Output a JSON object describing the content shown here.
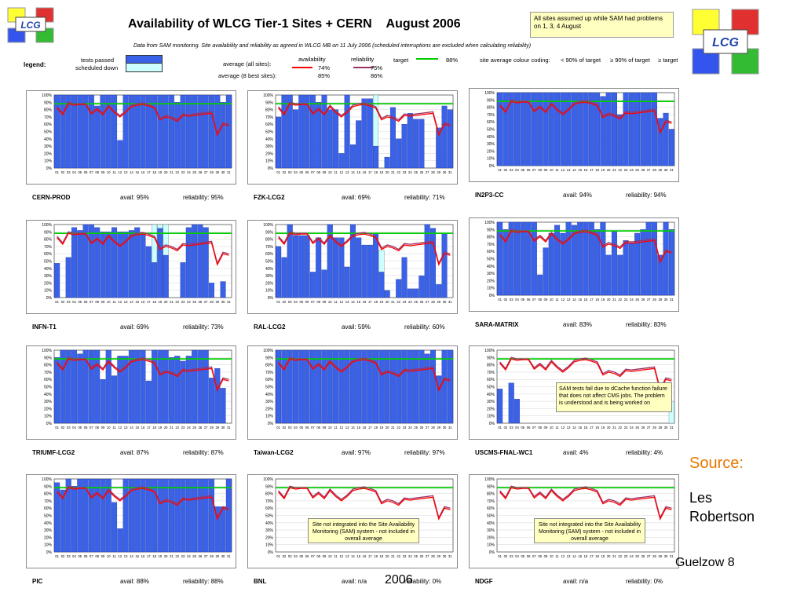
{
  "title": "Availability of WLCG Tier-1 Sites + CERN",
  "period": "August 2006",
  "note": "All sites assumed up while SAM had problems on 1, 3, 4 August",
  "subtitle": "Data from SAM monitoring. Site availability and reliability as agreed in WLCG MB on 11 July 2006 (scheduled interruptions are excluded when calculating reliability)",
  "logo_text": "LCG",
  "legend": {
    "label": "legend:",
    "tests_passed": "tests passed",
    "scheduled_down": "scheduled down",
    "average_all_label": "average (all sites):",
    "average_best_label": "average (8 best sites):",
    "availability": "availability",
    "reliability": "reliability",
    "avg_all_avail": "74%",
    "avg_all_rel": "75%",
    "avg_best_avail": "85%",
    "avg_best_rel": "86%",
    "target_label": "target",
    "target_value": "88%",
    "coding_label": "site average colour coding:",
    "coding_1": "< 90% of target",
    "coding_2": "≥ 90% of target",
    "coding_3": "≥ target"
  },
  "colors": {
    "tests_passed": "#3a62e8",
    "scheduled_down": "#ccffff",
    "availability": "#ff0000",
    "reliability": "#993366",
    "target": "#00cc00"
  },
  "source_label": "Source:",
  "author_line1": "Les",
  "author_line2": "Robertson",
  "footer_fragment": "Guelzow 8",
  "footer_year": "2006",
  "callouts": {
    "uscms": "SAM tests fail due to dCache function failure that does not affect CMS jobs. The problem is understood and is being worked on",
    "bnl": "Site not integrated into the Site Availability Monitoring (SAM) system - not included in overall average",
    "ndgf": "Site not integrated into the Site Availability Monitoring (SAM) system - not included in overall average"
  },
  "chart_common": {
    "avail_label": "avail:",
    "rel_label": "reliability:",
    "target": 88,
    "days": [
      "01",
      "02",
      "03",
      "04",
      "05",
      "06",
      "07",
      "08",
      "09",
      "10",
      "11",
      "12",
      "13",
      "14",
      "15",
      "16",
      "17",
      "18",
      "19",
      "20",
      "21",
      "22",
      "23",
      "24",
      "25",
      "26",
      "27",
      "28",
      "29",
      "30",
      "31"
    ],
    "yticks": [
      "0%",
      "10%",
      "20%",
      "30%",
      "40%",
      "50%",
      "60%",
      "70%",
      "80%",
      "90%",
      "100%"
    ],
    "avg_avail_line": [
      82,
      73,
      88,
      86,
      87,
      87,
      74,
      80,
      73,
      84,
      76,
      70,
      76,
      84,
      86,
      87,
      85,
      82,
      66,
      70,
      68,
      64,
      72,
      71,
      72,
      73,
      74,
      75,
      45,
      60,
      58
    ],
    "avg_rel_line": [
      84,
      75,
      90,
      88,
      88,
      88,
      76,
      82,
      75,
      86,
      78,
      72,
      78,
      86,
      88,
      89,
      87,
      84,
      68,
      72,
      70,
      66,
      74,
      73,
      74,
      75,
      76,
      77,
      47,
      62,
      60
    ]
  },
  "chart_data": [
    {
      "type": "bar",
      "site": "CERN-PROD",
      "avail": "95%",
      "reliability": "95%",
      "categories_ref": "days",
      "ylim": [
        0,
        100
      ],
      "series": [
        {
          "name": "tests passed",
          "values": [
            100,
            100,
            100,
            100,
            100,
            100,
            100,
            85,
            100,
            100,
            100,
            38,
            100,
            100,
            100,
            100,
            100,
            100,
            100,
            100,
            100,
            90,
            100,
            100,
            100,
            100,
            100,
            100,
            100,
            90,
            100
          ]
        },
        {
          "name": "scheduled down",
          "values": [
            0,
            0,
            0,
            0,
            0,
            0,
            0,
            0,
            0,
            0,
            0,
            0,
            0,
            0,
            0,
            0,
            0,
            0,
            0,
            0,
            0,
            0,
            0,
            0,
            0,
            0,
            0,
            0,
            0,
            0,
            0
          ]
        }
      ]
    },
    {
      "type": "bar",
      "site": "FZK-LCG2",
      "avail": "69%",
      "reliability": "71%",
      "ylim": [
        0,
        100
      ],
      "series": [
        {
          "name": "tests passed",
          "values": [
            70,
            100,
            100,
            80,
            100,
            100,
            100,
            90,
            100,
            80,
            80,
            20,
            100,
            32,
            65,
            95,
            95,
            30,
            0,
            15,
            83,
            40,
            60,
            75,
            67,
            67,
            0,
            0,
            55,
            85,
            80
          ]
        },
        {
          "name": "scheduled down",
          "values": [
            0,
            0,
            0,
            0,
            0,
            0,
            0,
            0,
            0,
            0,
            0,
            0,
            0,
            0,
            0,
            0,
            0,
            100,
            0,
            0,
            0,
            0,
            0,
            0,
            0,
            0,
            0,
            0,
            0,
            0,
            0
          ]
        }
      ]
    },
    {
      "type": "bar",
      "site": "IN2P3-CC",
      "avail": "94%",
      "reliability": "94%",
      "ylim": [
        0,
        100
      ],
      "series": [
        {
          "name": "tests passed",
          "values": [
            100,
            100,
            100,
            100,
            100,
            100,
            100,
            100,
            100,
            100,
            100,
            100,
            100,
            100,
            100,
            100,
            100,
            100,
            95,
            100,
            100,
            70,
            100,
            100,
            100,
            100,
            100,
            100,
            65,
            72,
            50
          ]
        },
        {
          "name": "scheduled down",
          "values": [
            0,
            0,
            0,
            0,
            0,
            0,
            0,
            0,
            0,
            0,
            0,
            0,
            0,
            0,
            0,
            0,
            0,
            0,
            0,
            0,
            100,
            0,
            0,
            0,
            0,
            0,
            0,
            0,
            0,
            0,
            0
          ]
        }
      ]
    },
    {
      "type": "bar",
      "site": "INFN-T1",
      "avail": "69%",
      "reliability": "73%",
      "ylim": [
        0,
        100
      ],
      "series": [
        {
          "name": "tests passed",
          "values": [
            47,
            0,
            55,
            96,
            92,
            100,
            100,
            96,
            90,
            90,
            96,
            90,
            90,
            92,
            96,
            88,
            70,
            48,
            95,
            58,
            0,
            0,
            48,
            96,
            100,
            100,
            96,
            20,
            0,
            22,
            0
          ]
        },
        {
          "name": "scheduled down",
          "values": [
            0,
            0,
            0,
            0,
            0,
            0,
            0,
            0,
            0,
            0,
            0,
            0,
            0,
            0,
            0,
            0,
            0,
            100,
            100,
            100,
            0,
            0,
            0,
            0,
            0,
            0,
            0,
            0,
            0,
            0,
            0
          ]
        }
      ]
    },
    {
      "type": "bar",
      "site": "RAL-LCG2",
      "avail": "59%",
      "reliability": "60%",
      "ylim": [
        0,
        100
      ],
      "series": [
        {
          "name": "tests passed",
          "values": [
            70,
            55,
            100,
            85,
            85,
            85,
            35,
            82,
            38,
            100,
            82,
            82,
            42,
            100,
            82,
            72,
            72,
            88,
            35,
            10,
            0,
            25,
            55,
            12,
            12,
            30,
            100,
            95,
            18,
            88,
            0
          ]
        },
        {
          "name": "scheduled down",
          "values": [
            0,
            0,
            0,
            0,
            0,
            0,
            0,
            0,
            0,
            0,
            0,
            0,
            0,
            0,
            0,
            0,
            0,
            0,
            65,
            0,
            0,
            0,
            0,
            0,
            0,
            0,
            0,
            0,
            0,
            0,
            0
          ]
        }
      ]
    },
    {
      "type": "bar",
      "site": "SARA-MATRIX",
      "avail": "83%",
      "reliability": "83%",
      "ylim": [
        0,
        100
      ],
      "series": [
        {
          "name": "tests passed",
          "values": [
            100,
            90,
            100,
            100,
            100,
            100,
            100,
            28,
            65,
            85,
            96,
            85,
            100,
            96,
            100,
            100,
            100,
            90,
            100,
            55,
            88,
            55,
            75,
            72,
            85,
            90,
            100,
            100,
            55,
            100,
            90
          ]
        },
        {
          "name": "scheduled down",
          "values": [
            0,
            0,
            0,
            0,
            0,
            0,
            0,
            0,
            0,
            0,
            0,
            0,
            0,
            0,
            0,
            0,
            0,
            0,
            0,
            0,
            0,
            0,
            0,
            0,
            0,
            0,
            0,
            0,
            0,
            0,
            0
          ]
        }
      ]
    },
    {
      "type": "bar",
      "site": "TRIUMF-LCG2",
      "avail": "87%",
      "reliability": "87%",
      "ylim": [
        0,
        100
      ],
      "series": [
        {
          "name": "tests passed",
          "values": [
            90,
            100,
            100,
            100,
            95,
            100,
            100,
            100,
            60,
            100,
            65,
            92,
            92,
            100,
            100,
            100,
            58,
            100,
            100,
            100,
            90,
            92,
            85,
            92,
            100,
            100,
            100,
            62,
            75,
            48,
            0
          ]
        },
        {
          "name": "scheduled down",
          "values": [
            0,
            0,
            0,
            0,
            0,
            0,
            0,
            0,
            0,
            0,
            0,
            0,
            0,
            0,
            0,
            0,
            0,
            0,
            0,
            0,
            0,
            0,
            0,
            0,
            0,
            0,
            0,
            0,
            0,
            0,
            0
          ]
        }
      ]
    },
    {
      "type": "bar",
      "site": "Taiwan-LCG2",
      "avail": "97%",
      "reliability": "97%",
      "ylim": [
        0,
        100
      ],
      "series": [
        {
          "name": "tests passed",
          "values": [
            100,
            100,
            100,
            100,
            100,
            100,
            100,
            100,
            100,
            100,
            100,
            100,
            100,
            100,
            100,
            100,
            100,
            100,
            100,
            100,
            100,
            100,
            100,
            100,
            100,
            100,
            95,
            100,
            65,
            100,
            100
          ]
        },
        {
          "name": "scheduled down",
          "values": [
            0,
            0,
            0,
            0,
            0,
            0,
            0,
            0,
            0,
            0,
            0,
            0,
            0,
            0,
            0,
            0,
            0,
            0,
            0,
            0,
            0,
            0,
            0,
            0,
            0,
            0,
            0,
            0,
            0,
            0,
            0
          ]
        }
      ]
    },
    {
      "type": "bar",
      "site": "USCMS-FNAL-WC1",
      "avail": "4%",
      "reliability": "4%",
      "ylim": [
        0,
        100
      ],
      "series": [
        {
          "name": "tests passed",
          "values": [
            47,
            0,
            55,
            33,
            0,
            0,
            0,
            0,
            0,
            0,
            0,
            0,
            0,
            0,
            0,
            0,
            0,
            0,
            0,
            0,
            0,
            0,
            0,
            0,
            0,
            0,
            0,
            0,
            0,
            0,
            0
          ]
        },
        {
          "name": "scheduled down",
          "values": [
            0,
            0,
            0,
            0,
            0,
            0,
            0,
            0,
            0,
            0,
            0,
            0,
            0,
            0,
            0,
            0,
            0,
            0,
            0,
            0,
            0,
            0,
            0,
            0,
            0,
            0,
            0,
            0,
            0,
            0,
            30
          ]
        }
      ]
    },
    {
      "type": "bar",
      "site": "PIC",
      "avail": "88%",
      "reliability": "88%",
      "ylim": [
        0,
        100
      ],
      "series": [
        {
          "name": "tests passed",
          "values": [
            95,
            85,
            100,
            90,
            100,
            100,
            100,
            100,
            100,
            100,
            68,
            32,
            100,
            100,
            100,
            100,
            100,
            100,
            100,
            100,
            100,
            100,
            100,
            100,
            100,
            100,
            100,
            100,
            62,
            62,
            100
          ]
        },
        {
          "name": "scheduled down",
          "values": [
            0,
            0,
            0,
            0,
            0,
            0,
            0,
            0,
            0,
            0,
            0,
            0,
            0,
            0,
            0,
            0,
            0,
            0,
            0,
            0,
            0,
            0,
            0,
            0,
            0,
            0,
            0,
            0,
            0,
            0,
            0
          ]
        }
      ]
    },
    {
      "type": "bar",
      "site": "BNL",
      "avail": "n/a",
      "reliability": "0%",
      "ylim": [
        0,
        100
      ],
      "series": [
        {
          "name": "tests passed",
          "values": [
            0,
            0,
            0,
            0,
            0,
            0,
            0,
            0,
            0,
            0,
            0,
            0,
            0,
            0,
            0,
            0,
            0,
            0,
            0,
            0,
            0,
            0,
            0,
            0,
            0,
            0,
            0,
            0,
            0,
            0,
            0
          ]
        },
        {
          "name": "scheduled down",
          "values": [
            0,
            0,
            0,
            0,
            0,
            0,
            0,
            0,
            0,
            0,
            0,
            0,
            0,
            0,
            0,
            0,
            0,
            0,
            0,
            0,
            0,
            0,
            0,
            0,
            0,
            0,
            0,
            0,
            0,
            0,
            0
          ]
        }
      ]
    },
    {
      "type": "bar",
      "site": "NDGF",
      "avail": "n/a",
      "reliability": "0%",
      "ylim": [
        0,
        100
      ],
      "series": [
        {
          "name": "tests passed",
          "values": [
            0,
            0,
            0,
            0,
            0,
            0,
            0,
            0,
            0,
            0,
            0,
            0,
            0,
            0,
            0,
            0,
            0,
            0,
            0,
            0,
            0,
            0,
            0,
            0,
            0,
            0,
            0,
            0,
            0,
            0,
            0
          ]
        },
        {
          "name": "scheduled down",
          "values": [
            0,
            0,
            0,
            0,
            0,
            0,
            0,
            0,
            0,
            0,
            0,
            0,
            0,
            0,
            0,
            0,
            0,
            0,
            0,
            0,
            0,
            0,
            0,
            0,
            0,
            0,
            0,
            0,
            0,
            0,
            0
          ]
        }
      ]
    }
  ]
}
